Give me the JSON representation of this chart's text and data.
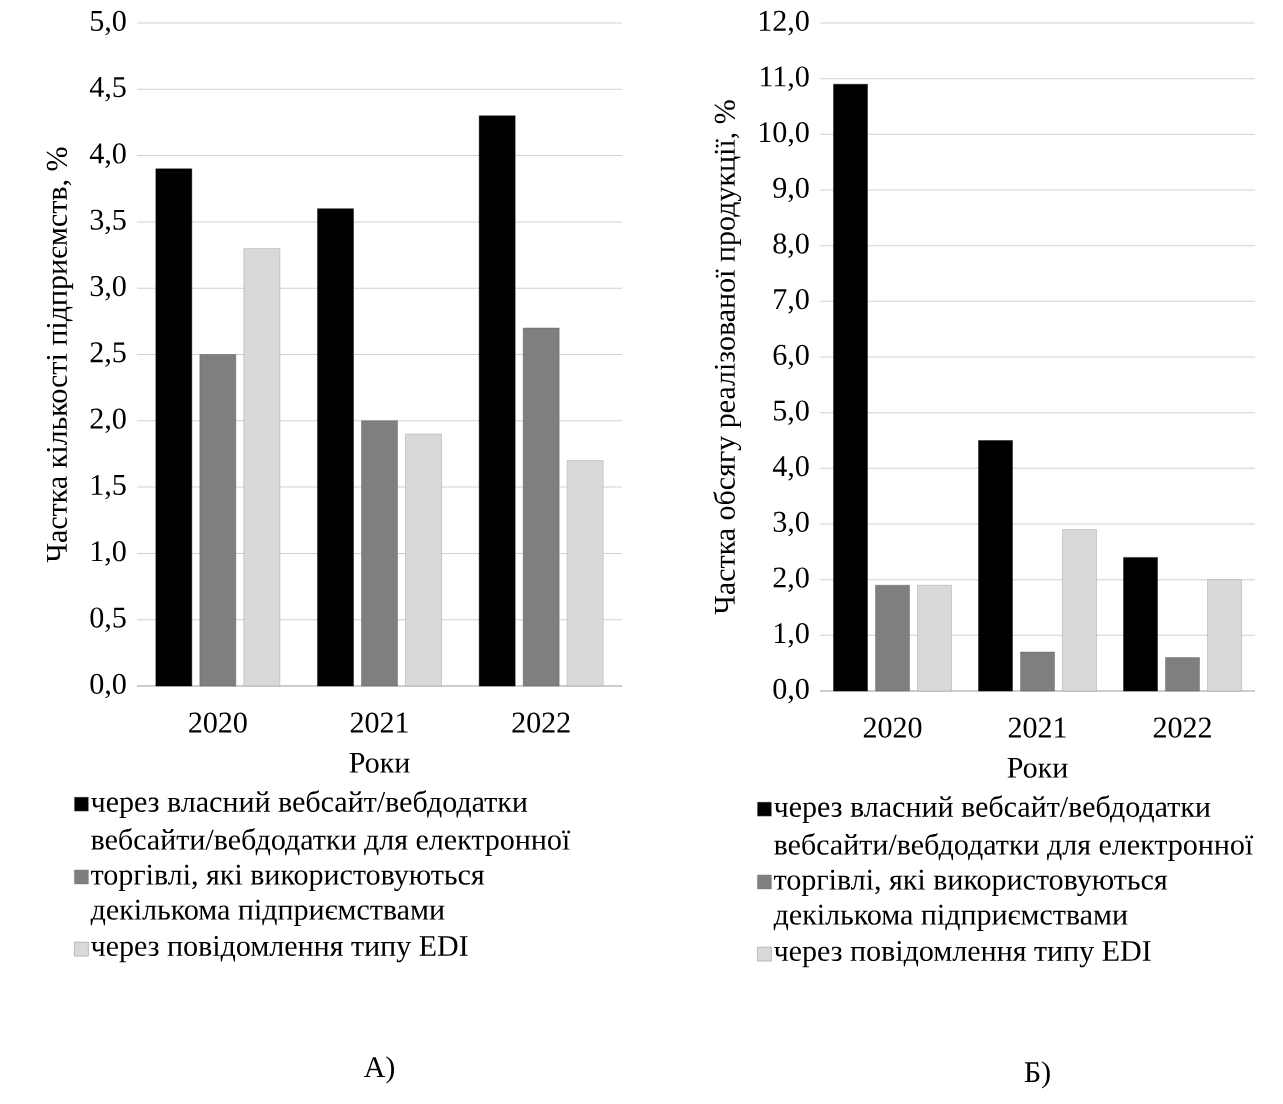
{
  "chart_data": [
    {
      "type": "bar",
      "categories": [
        "2020",
        "2021",
        "2022"
      ],
      "xlabel": "Роки",
      "ylabel": "Частка кількості підприємств, %",
      "series": [
        {
          "name": "через власний вебсайт/вебдодатки",
          "color": "#000000",
          "values": [
            3.9,
            3.6,
            4.3
          ]
        },
        {
          "name": "вебсайти/вебдодатки для електронної торгівлі, які використовуються декількома підприємствами",
          "color": "#7f7f7f",
          "values": [
            2.5,
            2.0,
            2.7
          ]
        },
        {
          "name": "через повідомлення типу EDI",
          "color": "#d9d9d9",
          "values": [
            3.3,
            1.9,
            1.7
          ]
        }
      ],
      "ylim": [
        0,
        5
      ],
      "yticks": [
        {
          "value": 0,
          "label": "0,0"
        },
        {
          "value": 0.5,
          "label": "0,5"
        },
        {
          "value": 1,
          "label": "1,0"
        },
        {
          "value": 1.5,
          "label": "1,5"
        },
        {
          "value": 2,
          "label": "2,0"
        },
        {
          "value": 2.5,
          "label": "2,5"
        },
        {
          "value": 3,
          "label": "3,0"
        },
        {
          "value": 3.5,
          "label": "3,5"
        },
        {
          "value": 4,
          "label": "4,0"
        },
        {
          "value": 4.5,
          "label": "4,5"
        },
        {
          "value": 5,
          "label": "5,0"
        }
      ],
      "grid": "y",
      "legend": "bottom",
      "annotations": [
        "А)"
      ]
    },
    {
      "type": "bar",
      "categories": [
        "2020",
        "2021",
        "2022"
      ],
      "xlabel": "Роки",
      "ylabel": "Частка обсягу реалізованої продукції, %",
      "series": [
        {
          "name": "через власний вебсайт/вебдодатки",
          "color": "#000000",
          "values": [
            10.9,
            4.5,
            2.4
          ]
        },
        {
          "name": "вебсайти/вебдодатки для електронної торгівлі, які використовуються декількома підприємствами",
          "color": "#7f7f7f",
          "values": [
            1.9,
            0.7,
            0.6
          ]
        },
        {
          "name": "через повідомлення типу EDI",
          "color": "#d9d9d9",
          "values": [
            1.9,
            2.9,
            2.0
          ]
        }
      ],
      "ylim": [
        0,
        12
      ],
      "yticks": [
        {
          "value": 0,
          "label": "0,0"
        },
        {
          "value": 1,
          "label": "1,0"
        },
        {
          "value": 2,
          "label": "2,0"
        },
        {
          "value": 3,
          "label": "3,0"
        },
        {
          "value": 4,
          "label": "4,0"
        },
        {
          "value": 5,
          "label": "5,0"
        },
        {
          "value": 6,
          "label": "6,0"
        },
        {
          "value": 7,
          "label": "7,0"
        },
        {
          "value": 8,
          "label": "8,0"
        },
        {
          "value": 9,
          "label": "9,0"
        },
        {
          "value": 10,
          "label": "10,0"
        },
        {
          "value": 11,
          "label": "11,0"
        },
        {
          "value": 12,
          "label": "12,0"
        }
      ],
      "grid": "y",
      "legend": "bottom",
      "annotations": [
        "Б)"
      ]
    }
  ]
}
